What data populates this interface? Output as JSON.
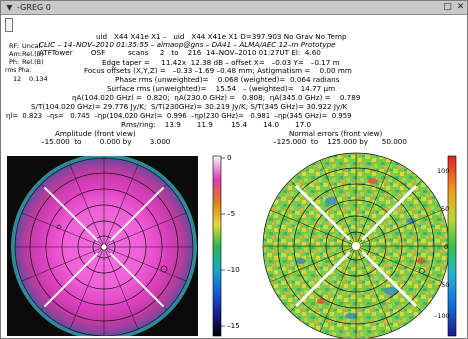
{
  "window": {
    "title": "-GREG 0",
    "menu_icon": "chevron-down-icon",
    "restore_glyph": "□",
    "close_glyph": "✕"
  },
  "side": {
    "rf": "RF:",
    "rf_val": "Uncal.",
    "am": "Am:",
    "am_val": "Rel.(B)",
    "ph": "Ph:",
    "ph_val": "Rel.(B)",
    "rms_label": "rms Pha.",
    "rms_a": "12",
    "rms_b": "0.134"
  },
  "header": {
    "line1": "uid   X44 X41e X1 –   uid   X44 X41e X1 D=397.903 No Grav No Temp",
    "line2": "CLIC – 14–NOV–2010 01:35:55 – almaop@gns – DA41 – ALMA/AEC 12–m Prototype",
    "line3": "ATFTower        OSF          scans     2   to    216  14–NOV–2010 01:27UT El:  4.60",
    "line4": "Edge taper =     11.42x  12.38 dB – offset X=   –0.03 Y=   –0.17 m",
    "line5": "Focus offsets (X,Y,Z) =   –0.33 –1.69 –0.48 mm; Astigmatism =    0.00 mm",
    "line6": "Phase rms (unweighted)=    0.068 (weighted)=  0.064 radians",
    "line7": "Surface rms (unweighted)=    15.54   – (weighted)=   14.77 μm",
    "line8": "ηA(104.020 GHz) =  0.820;  ηA(230.0 GHz) =   0.808;  ηA(345.0 GHz) =    0.789",
    "line9": "S/T(104.020 GHz)= 29.776 Jy/K;  S/T(230GHz)= 30.219 Jy/K; S/T(345 GHz)= 30.922 Jy/K",
    "line10": "ηl=  0.823  –ηs=   0.745  –ηp(104.020 GHz)=  0.996  –ηp(230 GHz)=   0.981  –ηp(345 GHz)=  0.959",
    "line11": "Rms/ring:    13.9       11.9        15.4       14.0       17.0",
    "left_title": "Amplitude (front view)",
    "left_range": "–15.000  to        0.000 by        3.000",
    "right_title": "Normal errors (front view)",
    "right_range": "–125.000  to    125.000 by      50.000"
  },
  "left_colorbar": {
    "ticks": [
      "0",
      "–5",
      "–10",
      "–15"
    ]
  },
  "right_colorbar": {
    "ticks": [
      "100",
      "50",
      "0",
      "–50",
      "–100"
    ]
  },
  "colors": {
    "title_bg": "#c9c9c9",
    "window_bg": "#ffffff"
  }
}
